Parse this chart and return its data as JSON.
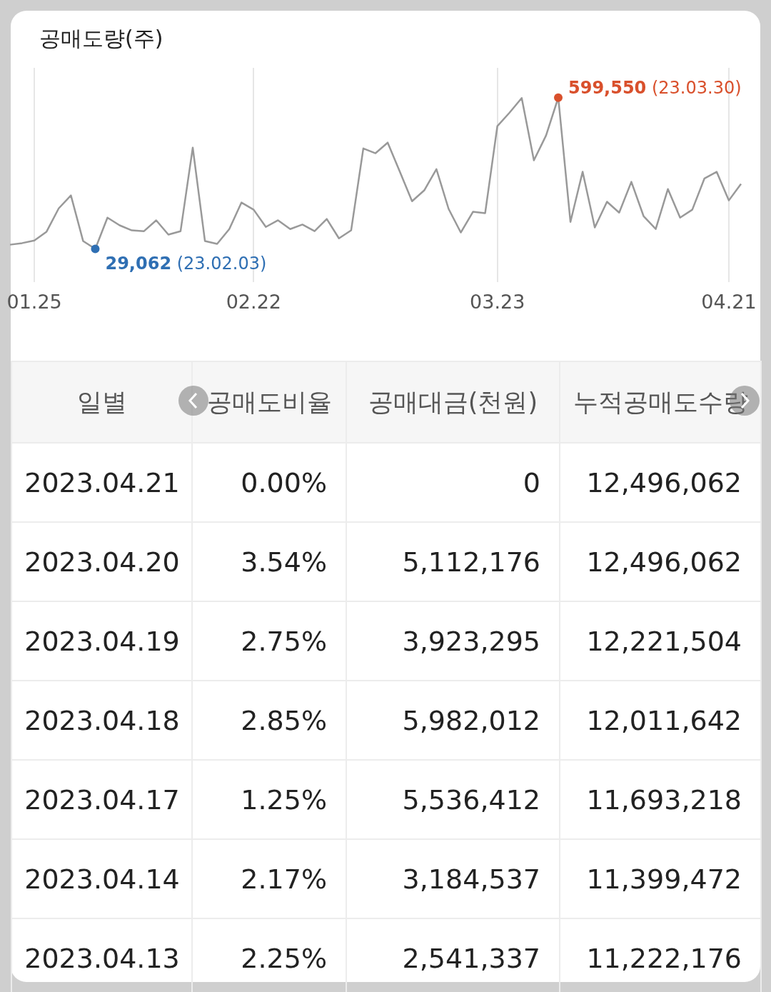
{
  "chart_data": [
    {
      "type": "line",
      "title": "공매도량(주)",
      "categories": [
        null,
        null,
        "01.25",
        null,
        null,
        null,
        null,
        null,
        null,
        null,
        null,
        null,
        null,
        null,
        null,
        null,
        null,
        null,
        null,
        null,
        "02.22",
        null,
        null,
        null,
        null,
        null,
        null,
        null,
        null,
        null,
        null,
        null,
        null,
        null,
        null,
        null,
        null,
        null,
        null,
        null,
        "03.23",
        null,
        null,
        null,
        null,
        null,
        null,
        null,
        null,
        null,
        null,
        null,
        null,
        null,
        null,
        null,
        null,
        null,
        null,
        "04.21",
        null
      ],
      "series": [
        {
          "color": "#999999",
          "values": [
            45000,
            51000,
            61000,
            94000,
            182000,
            231000,
            59000,
            29062,
            147000,
            118000,
            99000,
            96000,
            137000,
            83000,
            96000,
            411000,
            59000,
            48000,
            104000,
            204000,
            177000,
            112000,
            137000,
            104000,
            121000,
            96000,
            142000,
            69000,
            99000,
            408000,
            390000,
            430000,
            320000,
            209000,
            250000,
            330000,
            180000,
            91000,
            169000,
            164000,
            492000,
            543000,
            598000,
            363000,
            457000,
            599550,
            131000,
            320000,
            110000,
            207000,
            166000,
            282000,
            153000,
            104000,
            255000,
            147000,
            177000,
            295000,
            320000,
            212000,
            274000
          ],
          "colors": [
            null,
            null,
            null,
            null,
            null,
            null,
            null,
            "#2f6fb3",
            null,
            null,
            null,
            null,
            null,
            null,
            null,
            null,
            null,
            null,
            null,
            null,
            null,
            null,
            null,
            null,
            null,
            null,
            null,
            null,
            null,
            null,
            null,
            null,
            null,
            null,
            null,
            null,
            null,
            null,
            null,
            null,
            null,
            null,
            null,
            null,
            null,
            "#d9502c",
            null,
            null,
            null,
            null,
            null,
            null,
            null,
            null,
            null,
            null,
            null,
            null,
            null,
            null,
            null
          ],
          "value_labels": [
            null,
            null,
            null,
            null,
            null,
            null,
            null,
            "29,062 (23.02.03)",
            null,
            null,
            null,
            null,
            null,
            null,
            null,
            null,
            null,
            null,
            null,
            null,
            null,
            null,
            null,
            null,
            null,
            null,
            null,
            null,
            null,
            null,
            null,
            null,
            null,
            null,
            null,
            null,
            null,
            null,
            null,
            null,
            null,
            null,
            null,
            null,
            null,
            "599,550 (23.03.30)",
            null,
            null,
            null,
            null,
            null,
            null,
            null,
            null,
            null,
            null,
            null,
            null,
            null,
            null,
            null
          ]
        }
      ],
      "ylim": [
        -95000,
        712000
      ],
      "grid": "x",
      "tick_labels": "x",
      "marker": "none",
      "line_style": "solid"
    },
    {
      "type": "other",
      "categories": [
        "일별",
        "공매도비율",
        "공매대금(천원)",
        "누적공매도수량"
      ],
      "cell_labels": [
        [
          "2023.04.21",
          "0.00%",
          "0",
          "12,496,062"
        ],
        [
          "2023.04.20",
          "3.54%",
          "5,112,176",
          "12,496,062"
        ],
        [
          "2023.04.19",
          "2.75%",
          "3,923,295",
          "12,221,504"
        ],
        [
          "2023.04.18",
          "2.85%",
          "5,982,012",
          "12,011,642"
        ],
        [
          "2023.04.17",
          "1.25%",
          "5,536,412",
          "11,693,218"
        ],
        [
          "2023.04.14",
          "2.17%",
          "3,184,537",
          "11,399,472"
        ],
        [
          "2023.04.13",
          "2.25%",
          "2,541,337",
          "11,222,176"
        ]
      ]
    }
  ]
}
